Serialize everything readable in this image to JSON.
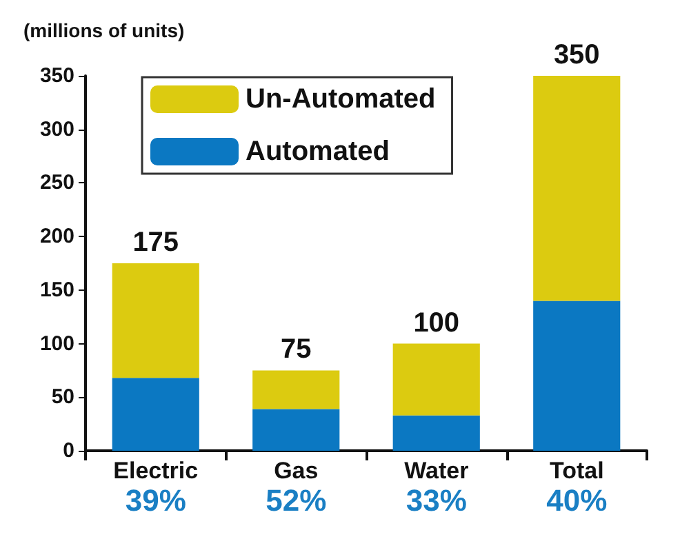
{
  "chart_data": {
    "type": "bar",
    "ylabel": "(millions of units)",
    "categories": [
      "Electric",
      "Gas",
      "Water",
      "Total"
    ],
    "stacked": true,
    "series": [
      {
        "name": "Automated",
        "color": "#0b78c2",
        "values": [
          68,
          39,
          33,
          140
        ]
      },
      {
        "name": "Un-Automated",
        "color": "#dccb10",
        "values": [
          107,
          36,
          67,
          210
        ]
      }
    ],
    "totals": [
      "175",
      "75",
      "100",
      "350"
    ],
    "annotations": [
      "39%",
      "52%",
      "33%",
      "40%"
    ],
    "ylim": [
      0,
      350
    ],
    "yticks": [
      0,
      50,
      100,
      150,
      200,
      250,
      300,
      350
    ],
    "grid": false,
    "legend": "top left"
  }
}
